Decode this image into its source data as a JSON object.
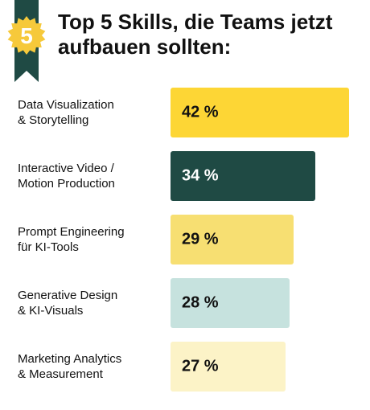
{
  "badge": {
    "number": "5",
    "star_color": "#f6c93b",
    "ribbon_color": "#1f4a44",
    "number_color": "#ffffff"
  },
  "title": {
    "line1": "Top 5 Skills, die Teams jetzt",
    "line2": "aufbauen sollten:"
  },
  "chart_data": {
    "type": "bar",
    "orientation": "horizontal",
    "title": "Top 5 Skills, die Teams jetzt aufbauen sollten:",
    "categories": [
      [
        "Data Visualization",
        "& Storytelling"
      ],
      [
        "Interactive Video /",
        "Motion Production"
      ],
      [
        "Prompt Engineering",
        "für KI-Tools"
      ],
      [
        "Generative Design",
        "& KI-Visuals"
      ],
      [
        "Marketing Analytics",
        "& Measurement"
      ]
    ],
    "values": [
      42,
      34,
      29,
      28,
      27
    ],
    "value_labels": [
      "42 %",
      "34 %",
      "29 %",
      "28 %",
      "27 %"
    ],
    "unit": "%",
    "xlim": [
      0,
      42
    ],
    "bar_colors": [
      "#fdd635",
      "#1f4a44",
      "#f7df72",
      "#c6e2de",
      "#fcf3c7"
    ],
    "label_colors": [
      "#111111",
      "#ffffff",
      "#111111",
      "#111111",
      "#111111"
    ],
    "grid": false,
    "legend": "none"
  }
}
